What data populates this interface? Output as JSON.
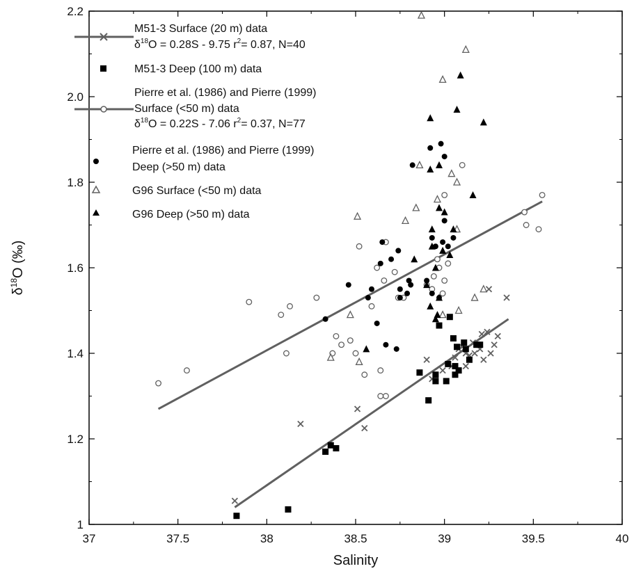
{
  "chart_data": {
    "type": "scatter",
    "xlabel": "Salinity",
    "ylabel_prefix": "δ",
    "ylabel_sup": "18",
    "ylabel_suffix": "O (‰)",
    "xlim": [
      37,
      40
    ],
    "ylim": [
      1.0,
      2.2
    ],
    "x_ticks": [
      37,
      37.5,
      38,
      38.5,
      39,
      39.5,
      40
    ],
    "x_tick_labels": [
      "37",
      "37.5",
      "38",
      "38.5",
      "39",
      "39.5",
      "40"
    ],
    "y_ticks": [
      1.0,
      1.2,
      1.4,
      1.6,
      1.8,
      2.0,
      2.2
    ],
    "y_tick_labels": [
      "1",
      "1.2",
      "1.4",
      "1.6",
      "1.8",
      "2.0",
      "2.2"
    ],
    "grid": false,
    "legend_position": "top-left",
    "colors": {
      "gray": "#606060",
      "black": "#000000"
    },
    "series": [
      {
        "name": "M51-3 Surface (20 m) data",
        "legend_lines": [
          "M51-3 Surface (20 m) data",
          "δ18O = 0.28S - 9.75  r2= 0.87, N=40"
        ],
        "marker": "x",
        "color": "#606060",
        "points": [
          [
            37.82,
            1.055
          ],
          [
            38.19,
            1.235
          ],
          [
            38.51,
            1.27
          ],
          [
            38.55,
            1.225
          ],
          [
            38.9,
            1.385
          ],
          [
            38.93,
            1.34
          ],
          [
            38.95,
            1.335
          ],
          [
            38.99,
            1.36
          ],
          [
            39.04,
            1.37
          ],
          [
            39.06,
            1.39
          ],
          [
            39.08,
            1.41
          ],
          [
            39.1,
            1.415
          ],
          [
            39.12,
            1.4
          ],
          [
            39.12,
            1.37
          ],
          [
            39.14,
            1.395
          ],
          [
            39.16,
            1.425
          ],
          [
            39.17,
            1.4
          ],
          [
            39.2,
            1.41
          ],
          [
            39.21,
            1.445
          ],
          [
            39.22,
            1.385
          ],
          [
            39.24,
            1.45
          ],
          [
            39.25,
            1.55
          ],
          [
            39.26,
            1.4
          ],
          [
            39.28,
            1.42
          ],
          [
            39.3,
            1.44
          ],
          [
            39.35,
            1.53
          ]
        ]
      },
      {
        "name": "M51-3 Deep (100 m) data",
        "legend_lines": [
          "M51-3 Deep (100 m) data"
        ],
        "marker": "square",
        "color": "#000000",
        "points": [
          [
            37.83,
            1.02
          ],
          [
            38.12,
            1.035
          ],
          [
            38.33,
            1.17
          ],
          [
            38.36,
            1.185
          ],
          [
            38.39,
            1.178
          ],
          [
            38.86,
            1.355
          ],
          [
            38.91,
            1.29
          ],
          [
            38.95,
            1.35
          ],
          [
            38.95,
            1.335
          ],
          [
            38.97,
            1.465
          ],
          [
            39.01,
            1.335
          ],
          [
            39.02,
            1.375
          ],
          [
            39.03,
            1.485
          ],
          [
            39.05,
            1.435
          ],
          [
            39.06,
            1.35
          ],
          [
            39.06,
            1.37
          ],
          [
            39.07,
            1.415
          ],
          [
            39.11,
            1.425
          ],
          [
            39.12,
            1.41
          ],
          [
            39.14,
            1.385
          ],
          [
            39.18,
            1.42
          ],
          [
            39.2,
            1.42
          ],
          [
            39.08,
            1.36
          ]
        ]
      },
      {
        "name": "Pierre et al. (1986) and Pierre (1999) Surface (<50 m) data",
        "legend_lines": [
          "Pierre et al. (1986) and Pierre (1999)",
          "Surface (<50 m) data",
          "δ18O = 0.22S - 7.06  r2= 0.37, N=77"
        ],
        "marker": "circle-open",
        "color": "#606060",
        "points": [
          [
            37.39,
            1.33
          ],
          [
            37.55,
            1.36
          ],
          [
            37.9,
            1.52
          ],
          [
            38.08,
            1.49
          ],
          [
            38.11,
            1.4
          ],
          [
            38.13,
            1.51
          ],
          [
            38.28,
            1.53
          ],
          [
            38.37,
            1.4
          ],
          [
            38.39,
            1.44
          ],
          [
            38.42,
            1.42
          ],
          [
            38.47,
            1.43
          ],
          [
            38.5,
            1.4
          ],
          [
            38.52,
            1.65
          ],
          [
            38.55,
            1.35
          ],
          [
            38.59,
            1.51
          ],
          [
            38.62,
            1.6
          ],
          [
            38.64,
            1.36
          ],
          [
            38.64,
            1.3
          ],
          [
            38.66,
            1.57
          ],
          [
            38.67,
            1.66
          ],
          [
            38.67,
            1.3
          ],
          [
            38.72,
            1.59
          ],
          [
            38.74,
            1.53
          ],
          [
            38.77,
            1.53
          ],
          [
            38.9,
            1.56
          ],
          [
            38.93,
            1.55
          ],
          [
            38.94,
            1.58
          ],
          [
            38.96,
            1.62
          ],
          [
            38.97,
            1.6
          ],
          [
            38.99,
            1.54
          ],
          [
            39.0,
            1.57
          ],
          [
            39.0,
            1.77
          ],
          [
            39.02,
            1.61
          ],
          [
            39.1,
            1.84
          ],
          [
            39.45,
            1.73
          ],
          [
            39.46,
            1.7
          ],
          [
            39.53,
            1.69
          ],
          [
            39.55,
            1.77
          ]
        ]
      },
      {
        "name": "Pierre et al. (1986) and Pierre (1999) Deep (>50 m) data",
        "legend_lines": [
          "Pierre et al. (1986) and Pierre (1999)",
          "Deep (>50 m) data"
        ],
        "marker": "circle",
        "color": "#000000",
        "points": [
          [
            38.33,
            1.48
          ],
          [
            38.46,
            1.56
          ],
          [
            38.57,
            1.53
          ],
          [
            38.59,
            1.55
          ],
          [
            38.62,
            1.47
          ],
          [
            38.64,
            1.61
          ],
          [
            38.65,
            1.66
          ],
          [
            38.67,
            1.42
          ],
          [
            38.7,
            1.62
          ],
          [
            38.73,
            1.41
          ],
          [
            38.74,
            1.64
          ],
          [
            38.75,
            1.55
          ],
          [
            38.75,
            1.53
          ],
          [
            38.79,
            1.54
          ],
          [
            38.8,
            1.57
          ],
          [
            38.81,
            1.56
          ],
          [
            38.82,
            1.84
          ],
          [
            38.9,
            1.57
          ],
          [
            38.92,
            1.88
          ],
          [
            38.93,
            1.67
          ],
          [
            38.93,
            1.54
          ],
          [
            38.95,
            1.65
          ],
          [
            38.97,
            1.53
          ],
          [
            38.98,
            1.89
          ],
          [
            38.99,
            1.66
          ],
          [
            39.0,
            1.86
          ],
          [
            39.0,
            1.71
          ],
          [
            39.02,
            1.65
          ],
          [
            39.05,
            1.67
          ]
        ]
      },
      {
        "name": "G96 Surface (<50 m) data",
        "legend_lines": [
          "G96 Surface (<50 m) data"
        ],
        "marker": "triangle-open",
        "color": "#606060",
        "points": [
          [
            38.36,
            1.39
          ],
          [
            38.47,
            1.49
          ],
          [
            38.51,
            1.72
          ],
          [
            38.52,
            1.38
          ],
          [
            38.78,
            1.71
          ],
          [
            38.84,
            1.74
          ],
          [
            38.86,
            1.84
          ],
          [
            38.87,
            2.19
          ],
          [
            38.96,
            1.76
          ],
          [
            38.99,
            2.04
          ],
          [
            38.99,
            1.49
          ],
          [
            39.04,
            1.82
          ],
          [
            39.07,
            1.69
          ],
          [
            39.07,
            1.8
          ],
          [
            39.08,
            1.5
          ],
          [
            39.12,
            2.11
          ],
          [
            39.17,
            1.53
          ],
          [
            39.22,
            1.55
          ]
        ]
      },
      {
        "name": "G96 Deep (>50 m) data",
        "legend_lines": [
          "G96 Deep (>50 m) data"
        ],
        "marker": "triangle",
        "color": "#000000",
        "points": [
          [
            38.56,
            1.41
          ],
          [
            38.83,
            1.62
          ],
          [
            38.92,
            1.51
          ],
          [
            38.92,
            1.95
          ],
          [
            38.92,
            1.83
          ],
          [
            38.93,
            1.69
          ],
          [
            38.93,
            1.65
          ],
          [
            38.95,
            1.6
          ],
          [
            38.95,
            1.48
          ],
          [
            38.97,
            1.84
          ],
          [
            38.97,
            1.74
          ],
          [
            38.97,
            1.53
          ],
          [
            38.99,
            1.64
          ],
          [
            39.0,
            1.73
          ],
          [
            39.03,
            1.63
          ],
          [
            39.05,
            1.69
          ],
          [
            39.07,
            1.97
          ],
          [
            39.09,
            2.05
          ],
          [
            39.16,
            1.77
          ],
          [
            39.22,
            1.94
          ],
          [
            38.9,
            1.56
          ],
          [
            38.96,
            1.49
          ]
        ]
      }
    ],
    "fit_lines": [
      {
        "name": "M51-3 Surface fit",
        "color": "#606060",
        "from": [
          37.82,
          1.04
        ],
        "to": [
          39.36,
          1.48
        ]
      },
      {
        "name": "Pierre Surface fit",
        "color": "#606060",
        "from": [
          37.39,
          1.27
        ],
        "to": [
          39.55,
          1.755
        ]
      }
    ]
  }
}
